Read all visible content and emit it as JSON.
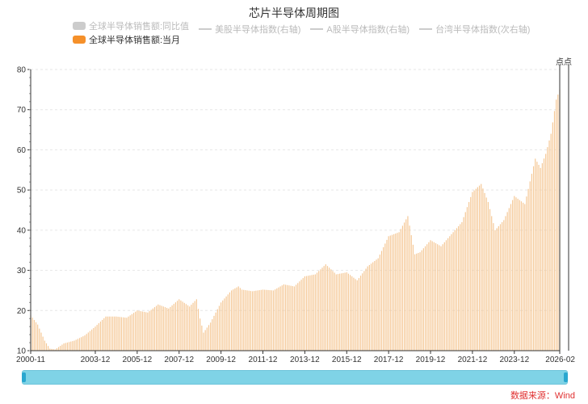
{
  "header": {
    "title": "芯片半导体周期图"
  },
  "legend": [
    {
      "label": "全球半导体销售额:同比值",
      "kind": "swatch",
      "color": "#cccccc",
      "active": false
    },
    {
      "label": "美股半导体指数(右轴)",
      "kind": "line",
      "color": "#cccccc",
      "active": false
    },
    {
      "label": "A股半导体指数(右轴)",
      "kind": "line",
      "color": "#cccccc",
      "active": false
    },
    {
      "label": "台湾半导体指数(次右轴)",
      "kind": "line",
      "color": "#cccccc",
      "active": false
    },
    {
      "label": "全球半导体销售额:当月",
      "kind": "swatch",
      "color": "#f5902a",
      "active": true
    }
  ],
  "dots_label": "点点",
  "footer": {
    "source": "数据来源：Wind"
  },
  "chart_data": {
    "type": "bar",
    "x_range": [
      "2000-11",
      "2026-02"
    ],
    "x_tick_labels": [
      "2000-11",
      "2003-12",
      "2005-12",
      "2007-12",
      "2009-12",
      "2011-12",
      "2013-12",
      "2015-12",
      "2017-12",
      "2019-12",
      "2021-12",
      "2023-12",
      "2026-02"
    ],
    "ylim": [
      10,
      80
    ],
    "y_ticks": [
      10,
      20,
      30,
      40,
      50,
      60,
      70,
      80
    ],
    "grid": true,
    "bar_color": "#f5c896",
    "series": [
      {
        "name": "全球半导体销售额:当月",
        "anchors": [
          [
            "2000-11",
            18.8
          ],
          [
            "2001-03",
            16.5
          ],
          [
            "2001-07",
            12.5
          ],
          [
            "2001-10",
            10.5
          ],
          [
            "2002-01",
            10.3
          ],
          [
            "2002-06",
            11.8
          ],
          [
            "2002-12",
            12.5
          ],
          [
            "2003-06",
            13.8
          ],
          [
            "2003-12",
            16.0
          ],
          [
            "2004-06",
            18.5
          ],
          [
            "2004-12",
            18.5
          ],
          [
            "2005-06",
            18.2
          ],
          [
            "2005-12",
            20.0
          ],
          [
            "2006-06",
            19.5
          ],
          [
            "2006-12",
            21.5
          ],
          [
            "2007-06",
            20.5
          ],
          [
            "2007-12",
            22.8
          ],
          [
            "2008-06",
            21.0
          ],
          [
            "2008-10",
            22.8
          ],
          [
            "2008-12",
            18.0
          ],
          [
            "2009-02",
            14.5
          ],
          [
            "2009-06",
            17.0
          ],
          [
            "2009-12",
            22.0
          ],
          [
            "2010-06",
            25.0
          ],
          [
            "2010-10",
            26.0
          ],
          [
            "2010-12",
            25.2
          ],
          [
            "2011-06",
            24.8
          ],
          [
            "2011-12",
            25.2
          ],
          [
            "2012-06",
            25.0
          ],
          [
            "2012-12",
            26.5
          ],
          [
            "2013-06",
            26.0
          ],
          [
            "2013-12",
            28.5
          ],
          [
            "2014-06",
            29.0
          ],
          [
            "2014-12",
            31.5
          ],
          [
            "2015-06",
            29.0
          ],
          [
            "2015-12",
            29.5
          ],
          [
            "2016-06",
            27.5
          ],
          [
            "2016-12",
            31.0
          ],
          [
            "2017-06",
            33.0
          ],
          [
            "2017-12",
            38.5
          ],
          [
            "2018-06",
            39.5
          ],
          [
            "2018-11",
            43.5
          ],
          [
            "2019-03",
            34.0
          ],
          [
            "2019-06",
            34.5
          ],
          [
            "2019-12",
            37.5
          ],
          [
            "2020-06",
            36.0
          ],
          [
            "2020-12",
            39.0
          ],
          [
            "2021-06",
            42.0
          ],
          [
            "2021-12",
            49.5
          ],
          [
            "2022-05",
            51.5
          ],
          [
            "2022-09",
            47.0
          ],
          [
            "2023-01",
            40.0
          ],
          [
            "2023-06",
            42.5
          ],
          [
            "2023-12",
            48.5
          ],
          [
            "2024-06",
            46.5
          ],
          [
            "2024-12",
            57.8
          ],
          [
            "2025-03",
            55.5
          ],
          [
            "2025-06",
            59.0
          ],
          [
            "2025-09",
            64.0
          ],
          [
            "2025-12",
            72.5
          ],
          [
            "2026-02",
            75.0
          ]
        ]
      }
    ]
  }
}
